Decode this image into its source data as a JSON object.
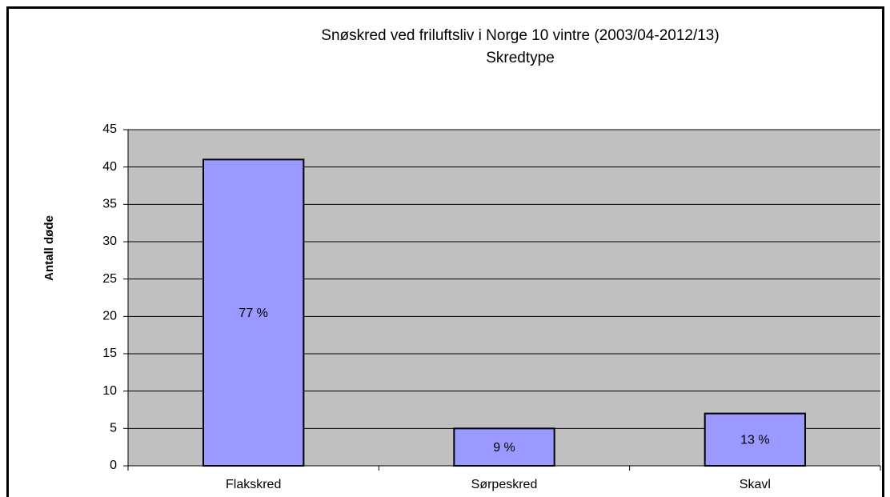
{
  "chart_data": {
    "type": "bar",
    "title": "Snøskred ved friluftsliv i Norge 10 vintre (2003/04-2012/13)",
    "subtitle": "Skredtype",
    "y_label": "Antall døde",
    "categories": [
      "Flakskred",
      "Sørpeskred",
      "Skavl"
    ],
    "values": [
      41,
      5,
      7
    ],
    "annotations": [
      "77 %",
      "9 %",
      "13 %"
    ],
    "color": "#9999ff",
    "ylim": [
      0,
      45
    ],
    "yticks": [
      0,
      5,
      10,
      15,
      20,
      25,
      30,
      35,
      40,
      45
    ],
    "grid": true
  }
}
